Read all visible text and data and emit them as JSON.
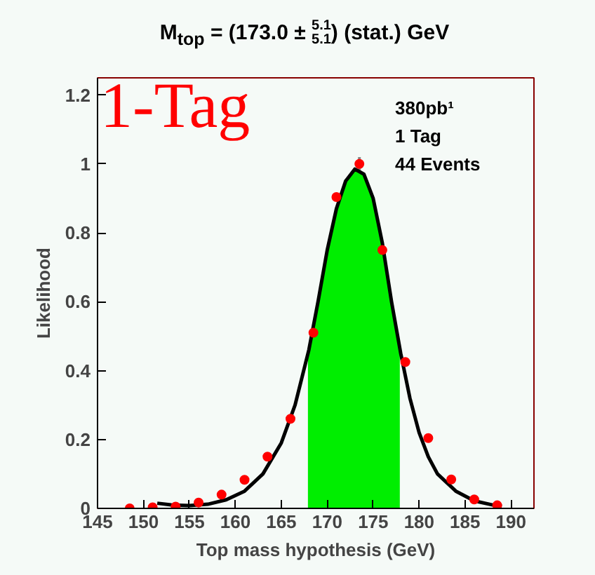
{
  "chart_data": {
    "type": "scatter",
    "title": "M$_{top}$ = (173.0 ± $^{5.1}$$_{5.1}$) (stat.) GeV",
    "xlabel": "Top mass hypothesis (GeV)",
    "ylabel": "Likelihood",
    "annotations": [
      "1-Tag",
      "380pb¹",
      "1 Tag",
      "44 Events"
    ],
    "xlim": [
      145,
      192.5
    ],
    "ylim": [
      0,
      1.25
    ],
    "xticks": [
      145,
      150,
      155,
      160,
      165,
      170,
      175,
      180,
      185,
      190
    ],
    "yticks": [
      0,
      0.2,
      0.4,
      0.6,
      0.8,
      1,
      1.2
    ],
    "grid": false,
    "series": [
      {
        "type": "area",
        "color": "#00ee00",
        "x": [
          167.9,
          168,
          169,
          170,
          171,
          172,
          173,
          174,
          175,
          176,
          177,
          177.9
        ],
        "values": [
          0.44,
          0.46,
          0.6,
          0.75,
          0.87,
          0.95,
          0.985,
          0.97,
          0.9,
          0.77,
          0.6,
          0.46
        ]
      },
      {
        "type": "line",
        "color": "#000000",
        "line_style": "solid",
        "marker": "none",
        "x": [
          151.5,
          153,
          155,
          157,
          159,
          161,
          163,
          165,
          166.5,
          168,
          169,
          170,
          171,
          172,
          173,
          174,
          175,
          176,
          177,
          178,
          179,
          180,
          181,
          182,
          184,
          186,
          188,
          189
        ],
        "values": [
          0.015,
          0.01,
          0.008,
          0.012,
          0.025,
          0.05,
          0.1,
          0.19,
          0.3,
          0.46,
          0.6,
          0.75,
          0.87,
          0.95,
          0.985,
          0.97,
          0.9,
          0.77,
          0.6,
          0.45,
          0.32,
          0.22,
          0.15,
          0.1,
          0.05,
          0.022,
          0.01,
          0.006
        ]
      },
      {
        "color": "#ff0000",
        "marker": "circle",
        "x": [
          148.5,
          151,
          153.5,
          156,
          158.5,
          161,
          163.5,
          166,
          168.5,
          171,
          173.5,
          176,
          178.5,
          181,
          183.5,
          186,
          188.5
        ],
        "values": [
          0.0,
          0.003,
          0.005,
          0.017,
          0.04,
          0.083,
          0.15,
          0.26,
          0.51,
          0.904,
          1.0,
          0.75,
          0.425,
          0.204,
          0.084,
          0.026,
          0.009
        ],
        "errors": [
          null,
          null,
          null,
          null,
          null,
          null,
          null,
          null,
          null,
          null,
          0.02,
          null,
          null,
          null,
          null,
          null,
          null
        ]
      }
    ]
  }
}
